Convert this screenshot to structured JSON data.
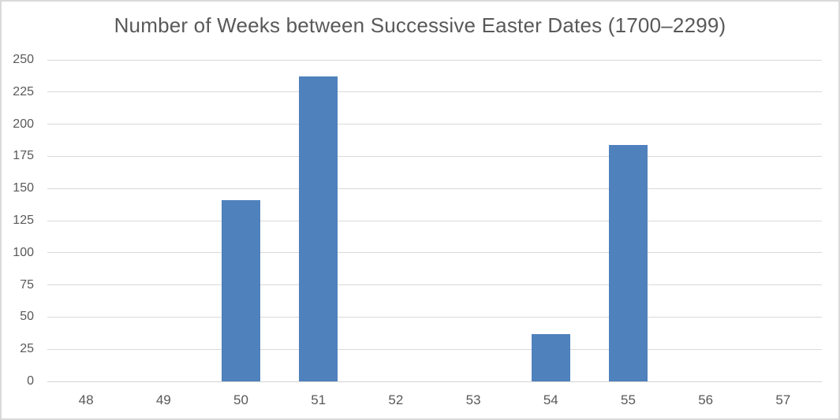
{
  "chart_data": {
    "type": "bar",
    "title": "Number of Weeks between Successive Easter Dates (1700–2299)",
    "categories": [
      "48",
      "49",
      "50",
      "51",
      "52",
      "53",
      "54",
      "55",
      "56",
      "57"
    ],
    "values": [
      0,
      0,
      141,
      237,
      0,
      0,
      37,
      184,
      0,
      0
    ],
    "xlabel": "",
    "ylabel": "",
    "ylim": [
      0,
      250
    ],
    "yticks": [
      0,
      25,
      50,
      75,
      100,
      125,
      150,
      175,
      200,
      225,
      250
    ],
    "grid": "horizontal",
    "legend": "none",
    "colors": {
      "bar_fill": "#4F81BD",
      "gridline": "#D9D9D9",
      "axis_line": "#D3D3D3",
      "tick_label_text": "#595959",
      "title_text": "#595959",
      "frame_border": "#D9D9D9",
      "background": "#FFFFFF"
    }
  }
}
